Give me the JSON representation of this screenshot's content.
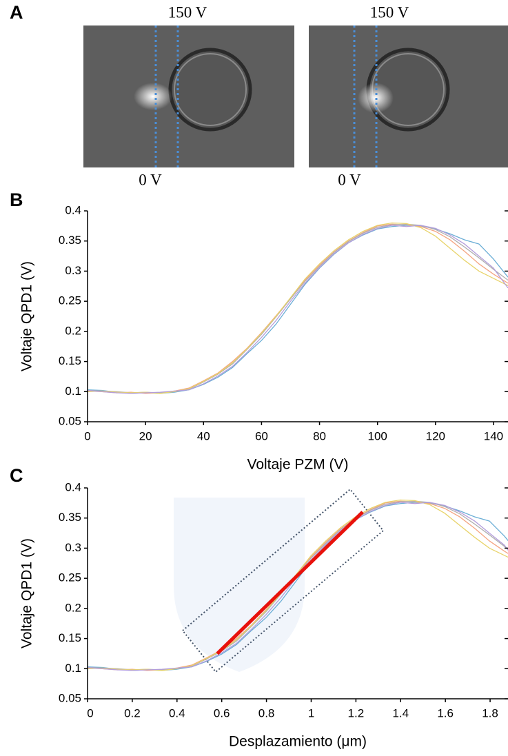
{
  "panel_labels": [
    "A",
    "B",
    "C"
  ],
  "images": [
    {
      "top_label": "150 V",
      "bottom_label": "0 V"
    },
    {
      "top_label": "150 V",
      "bottom_label": "0 V"
    }
  ],
  "chart_data": [
    {
      "type": "line",
      "x_label": "Voltaje PZM (V)",
      "y_label": "Voltaje QPD1 (V)",
      "x": [
        0,
        5,
        10,
        15,
        20,
        25,
        30,
        35,
        40,
        45,
        50,
        55,
        60,
        65,
        70,
        75,
        80,
        85,
        90,
        95,
        100,
        105,
        110,
        115,
        120,
        125,
        130,
        135,
        140,
        145
      ],
      "xlim": [
        0,
        145
      ],
      "xticks": [
        0,
        20,
        40,
        60,
        80,
        100,
        120,
        140
      ],
      "ylim": [
        0.05,
        0.4
      ],
      "yticks": [
        0.05,
        0.1,
        0.15,
        0.2,
        0.25,
        0.3,
        0.35,
        0.4
      ],
      "series": [
        {
          "color": "#6baed6",
          "values": [
            0.103,
            0.102,
            0.099,
            0.097,
            0.098,
            0.097,
            0.099,
            0.103,
            0.112,
            0.124,
            0.14,
            0.163,
            0.185,
            0.212,
            0.245,
            0.278,
            0.305,
            0.328,
            0.347,
            0.36,
            0.37,
            0.374,
            0.376,
            0.375,
            0.37,
            0.362,
            0.352,
            0.345,
            0.32,
            0.29
          ]
        },
        {
          "color": "#f4a582",
          "values": [
            0.101,
            0.1,
            0.098,
            0.099,
            0.097,
            0.098,
            0.101,
            0.106,
            0.118,
            0.131,
            0.15,
            0.172,
            0.198,
            0.226,
            0.255,
            0.285,
            0.31,
            0.332,
            0.35,
            0.364,
            0.375,
            0.378,
            0.377,
            0.374,
            0.366,
            0.352,
            0.333,
            0.312,
            0.295,
            0.28
          ]
        },
        {
          "color": "#b0b0b0",
          "values": [
            0.102,
            0.101,
            0.1,
            0.098,
            0.099,
            0.098,
            0.1,
            0.104,
            0.116,
            0.129,
            0.146,
            0.17,
            0.195,
            0.224,
            0.254,
            0.283,
            0.308,
            0.331,
            0.349,
            0.363,
            0.373,
            0.377,
            0.378,
            0.376,
            0.369,
            0.357,
            0.34,
            0.322,
            0.303,
            0.285
          ]
        },
        {
          "color": "#e8d36a",
          "values": [
            0.1,
            0.101,
            0.099,
            0.098,
            0.099,
            0.097,
            0.1,
            0.105,
            0.117,
            0.13,
            0.148,
            0.171,
            0.197,
            0.225,
            0.256,
            0.287,
            0.312,
            0.334,
            0.352,
            0.366,
            0.376,
            0.38,
            0.379,
            0.372,
            0.358,
            0.338,
            0.318,
            0.3,
            0.288,
            0.276
          ]
        },
        {
          "color": "#b39ddb",
          "values": [
            0.102,
            0.1,
            0.098,
            0.097,
            0.098,
            0.099,
            0.101,
            0.103,
            0.113,
            0.126,
            0.142,
            0.165,
            0.19,
            0.218,
            0.25,
            0.28,
            0.306,
            0.329,
            0.347,
            0.361,
            0.371,
            0.376,
            0.374,
            0.376,
            0.371,
            0.36,
            0.345,
            0.325,
            0.305,
            0.272
          ]
        }
      ]
    },
    {
      "type": "line",
      "x_label": "Desplazamiento (μm)",
      "y_label": "Voltaje QPD1 (V)",
      "x": [
        0,
        0.067,
        0.133,
        0.2,
        0.266,
        0.333,
        0.399,
        0.466,
        0.532,
        0.599,
        0.666,
        0.732,
        0.799,
        0.865,
        0.932,
        0.998,
        1.065,
        1.131,
        1.198,
        1.265,
        1.331,
        1.398,
        1.464,
        1.531,
        1.597,
        1.664,
        1.731,
        1.797,
        1.864,
        1.93
      ],
      "xlim": [
        0,
        1.88
      ],
      "xticks": [
        0,
        0.2,
        0.4,
        0.6,
        0.8,
        1,
        1.2,
        1.4,
        1.6,
        1.8
      ],
      "ylim": [
        0.05,
        0.4
      ],
      "yticks": [
        0.05,
        0.1,
        0.15,
        0.2,
        0.25,
        0.3,
        0.35,
        0.4
      ],
      "series": [
        {
          "color": "#6baed6",
          "values": [
            0.103,
            0.102,
            0.099,
            0.097,
            0.098,
            0.097,
            0.099,
            0.103,
            0.112,
            0.124,
            0.14,
            0.163,
            0.185,
            0.212,
            0.245,
            0.278,
            0.305,
            0.328,
            0.347,
            0.36,
            0.37,
            0.374,
            0.376,
            0.375,
            0.37,
            0.362,
            0.352,
            0.345,
            0.32,
            0.29
          ]
        },
        {
          "color": "#f4a582",
          "values": [
            0.101,
            0.1,
            0.098,
            0.099,
            0.097,
            0.098,
            0.101,
            0.106,
            0.118,
            0.131,
            0.15,
            0.172,
            0.198,
            0.226,
            0.255,
            0.285,
            0.31,
            0.332,
            0.35,
            0.364,
            0.375,
            0.378,
            0.377,
            0.374,
            0.366,
            0.352,
            0.333,
            0.312,
            0.295,
            0.28
          ]
        },
        {
          "color": "#b0b0b0",
          "values": [
            0.102,
            0.101,
            0.1,
            0.098,
            0.099,
            0.098,
            0.1,
            0.104,
            0.116,
            0.129,
            0.146,
            0.17,
            0.195,
            0.224,
            0.254,
            0.283,
            0.308,
            0.331,
            0.349,
            0.363,
            0.373,
            0.377,
            0.378,
            0.376,
            0.369,
            0.357,
            0.34,
            0.322,
            0.303,
            0.285
          ]
        },
        {
          "color": "#e8d36a",
          "values": [
            0.1,
            0.101,
            0.099,
            0.098,
            0.099,
            0.097,
            0.1,
            0.105,
            0.117,
            0.13,
            0.148,
            0.171,
            0.197,
            0.225,
            0.256,
            0.287,
            0.312,
            0.334,
            0.352,
            0.366,
            0.376,
            0.38,
            0.379,
            0.372,
            0.358,
            0.338,
            0.318,
            0.3,
            0.288,
            0.276
          ]
        },
        {
          "color": "#b39ddb",
          "values": [
            0.102,
            0.1,
            0.098,
            0.097,
            0.098,
            0.099,
            0.101,
            0.103,
            0.113,
            0.126,
            0.142,
            0.165,
            0.19,
            0.218,
            0.25,
            0.28,
            0.306,
            0.329,
            0.347,
            0.361,
            0.371,
            0.376,
            0.374,
            0.376,
            0.371,
            0.36,
            0.345,
            0.325,
            0.305,
            0.272
          ]
        }
      ],
      "fit_line": {
        "color": "#e8120c",
        "x": [
          0.58,
          1.23
        ],
        "values": [
          0.125,
          0.36
        ]
      }
    }
  ]
}
